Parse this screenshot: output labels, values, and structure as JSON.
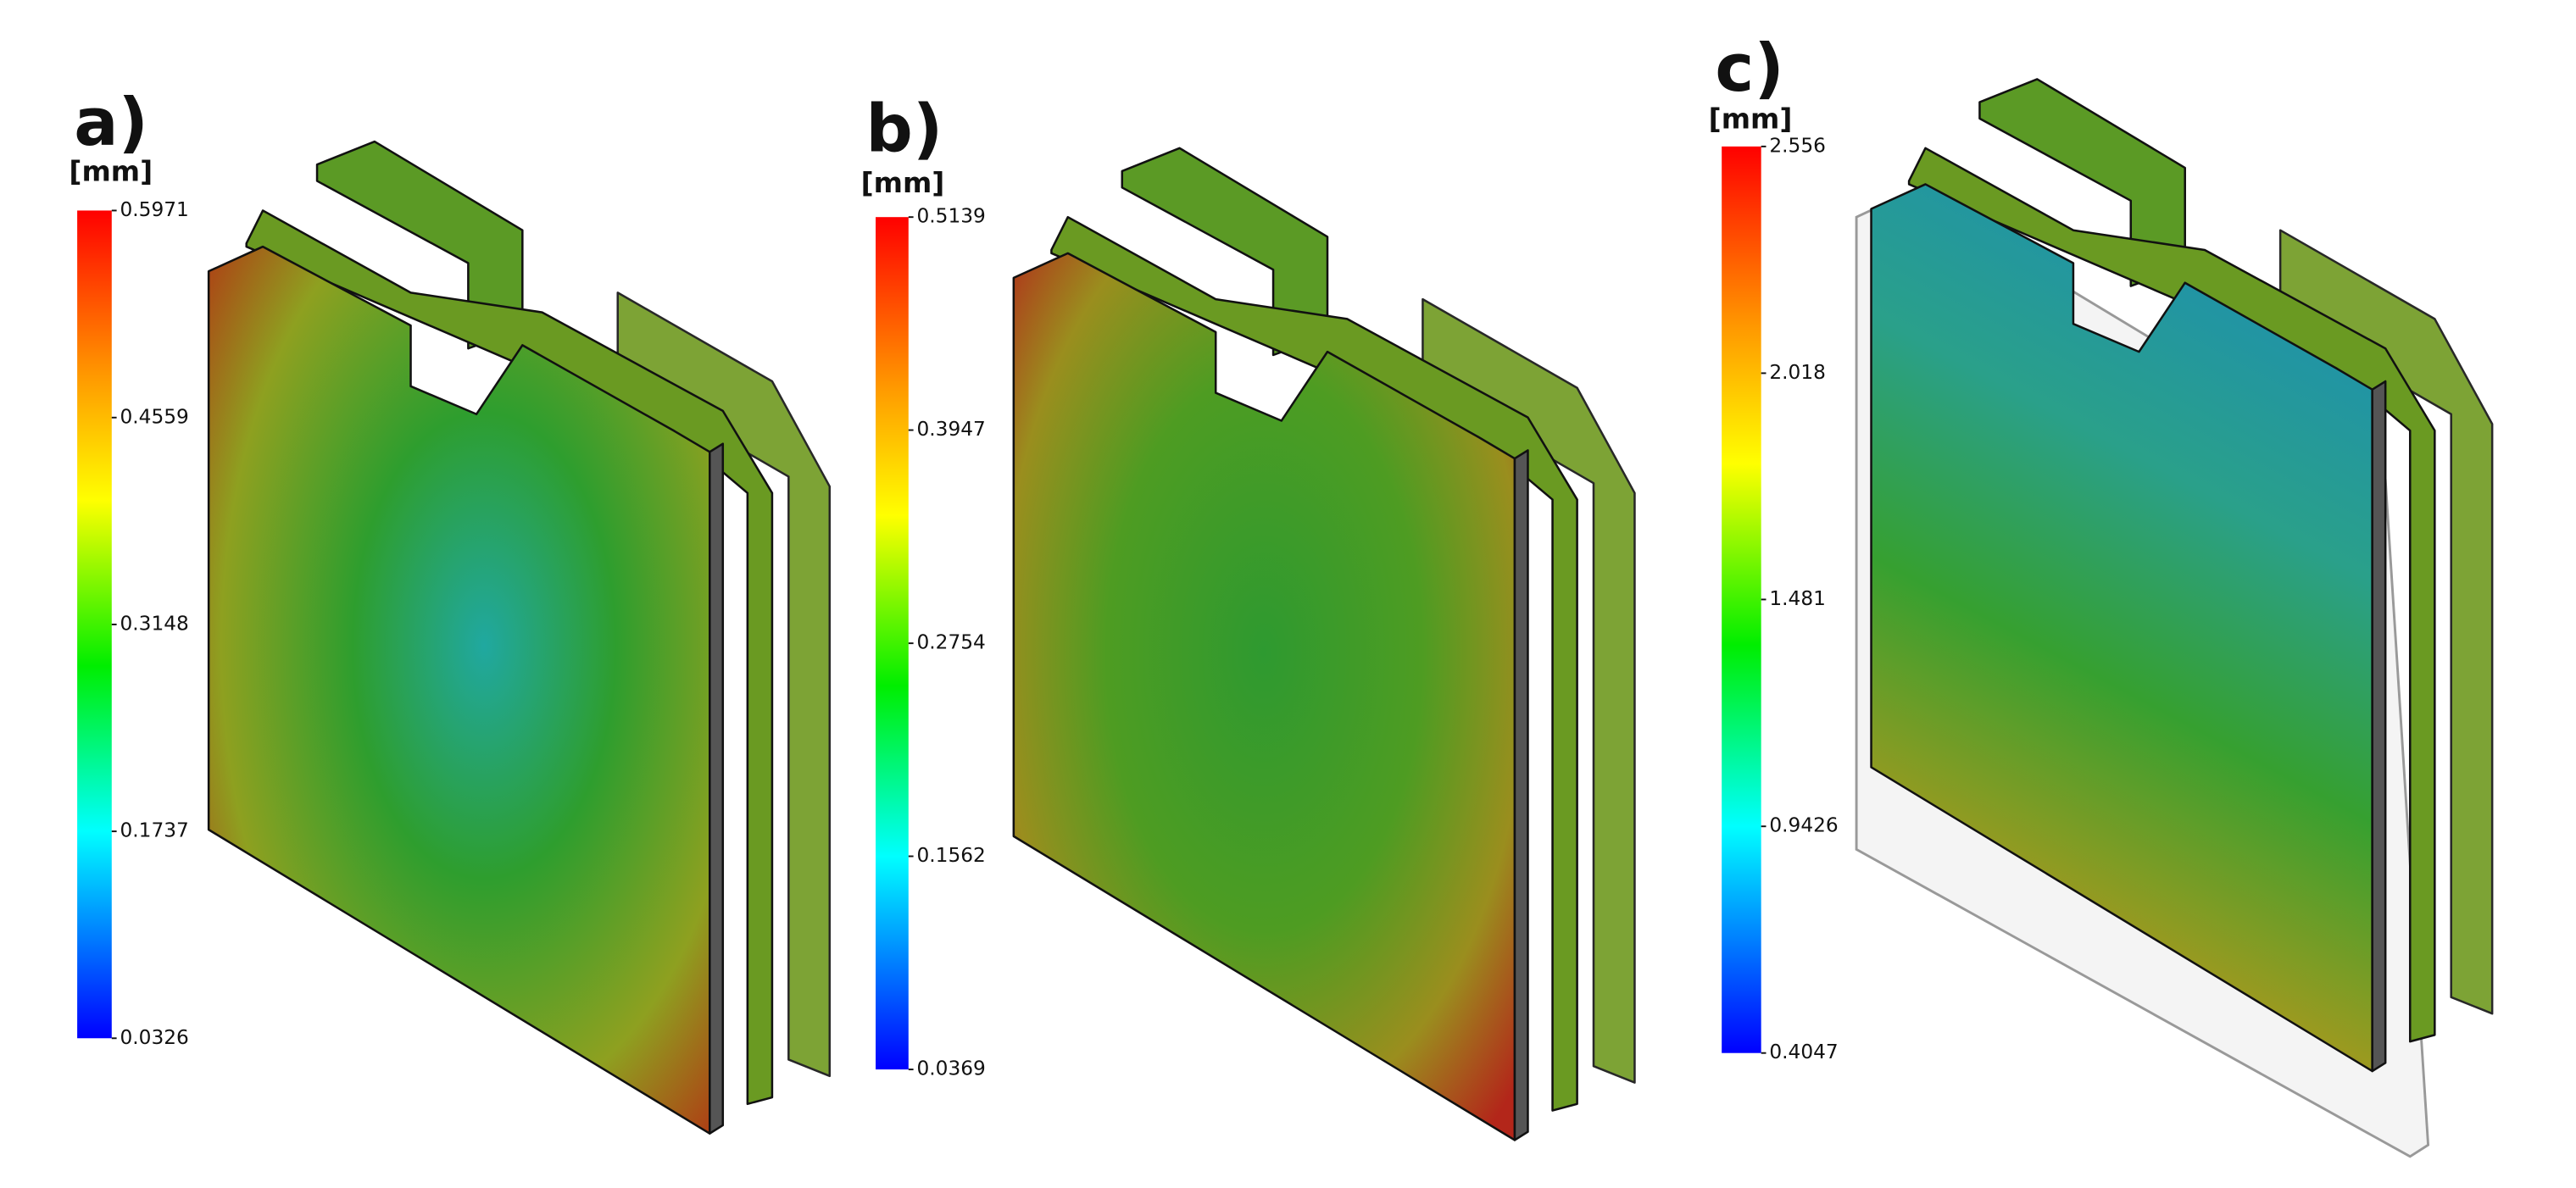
{
  "panels": [
    {
      "label": "a)",
      "unit": "[mm]",
      "ticks": [
        0.5971,
        0.4559,
        0.3148,
        0.1737,
        0.0326
      ]
    },
    {
      "label": "b)",
      "unit": "[mm]",
      "ticks": [
        0.5139,
        0.3947,
        0.2754,
        0.1562,
        0.0369
      ]
    },
    {
      "label": "c)",
      "unit": "[mm]",
      "ticks": [
        2.556,
        2.018,
        1.481,
        0.9426,
        0.4047
      ]
    }
  ]
}
